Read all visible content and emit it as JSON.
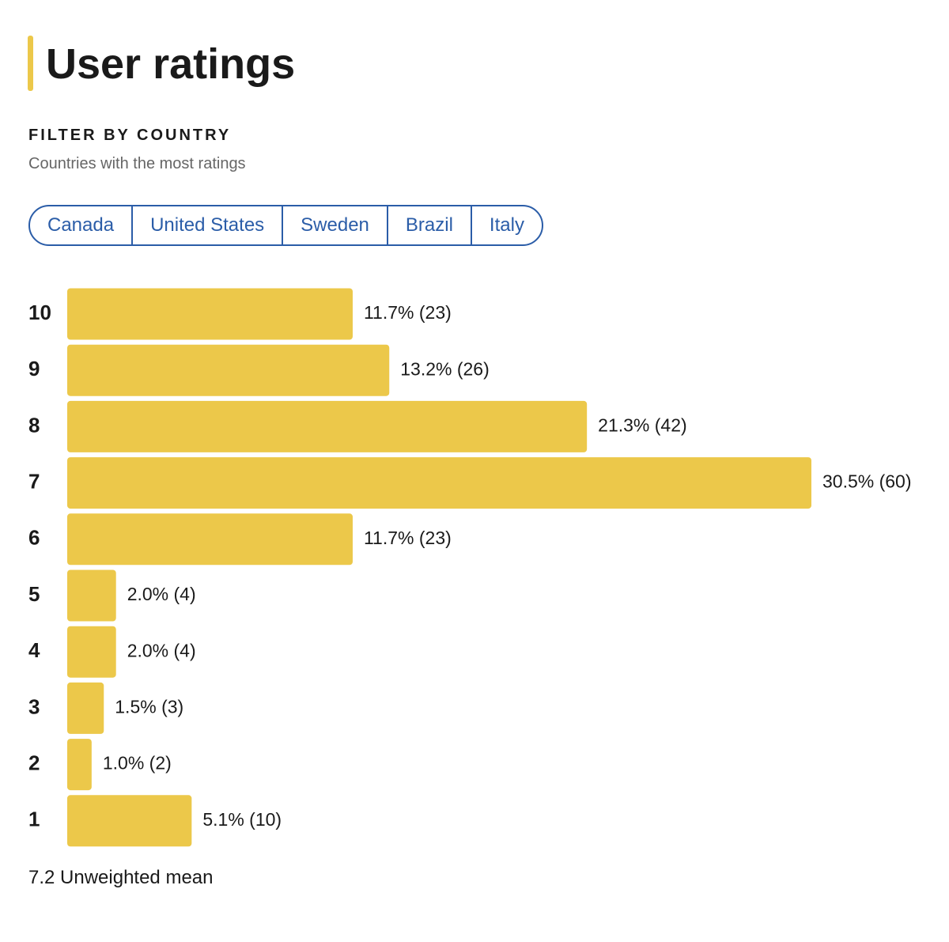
{
  "header": {
    "title": "User ratings"
  },
  "filter": {
    "label": "FILTER BY COUNTRY",
    "subtitle": "Countries with the most ratings",
    "countries": [
      "Canada",
      "United States",
      "Sweden",
      "Brazil",
      "Italy"
    ]
  },
  "chart_data": {
    "type": "hbar",
    "color": "#ecc84a",
    "categories": [
      "10",
      "9",
      "8",
      "7",
      "6",
      "5",
      "4",
      "3",
      "2",
      "1"
    ],
    "values": [
      11.7,
      13.2,
      21.3,
      30.5,
      11.7,
      2.0,
      2.0,
      1.5,
      1.0,
      5.1
    ],
    "value_labels": [
      "11.7% (23)",
      "13.2% (26)",
      "21.3% (42)",
      "30.5% (60)",
      "11.7% (23)",
      "2.0% (4)",
      "2.0% (4)",
      "1.5% (3)",
      "1.0% (2)",
      "5.1% (10)"
    ]
  },
  "footer": {
    "text": "7.2 Unweighted mean"
  }
}
